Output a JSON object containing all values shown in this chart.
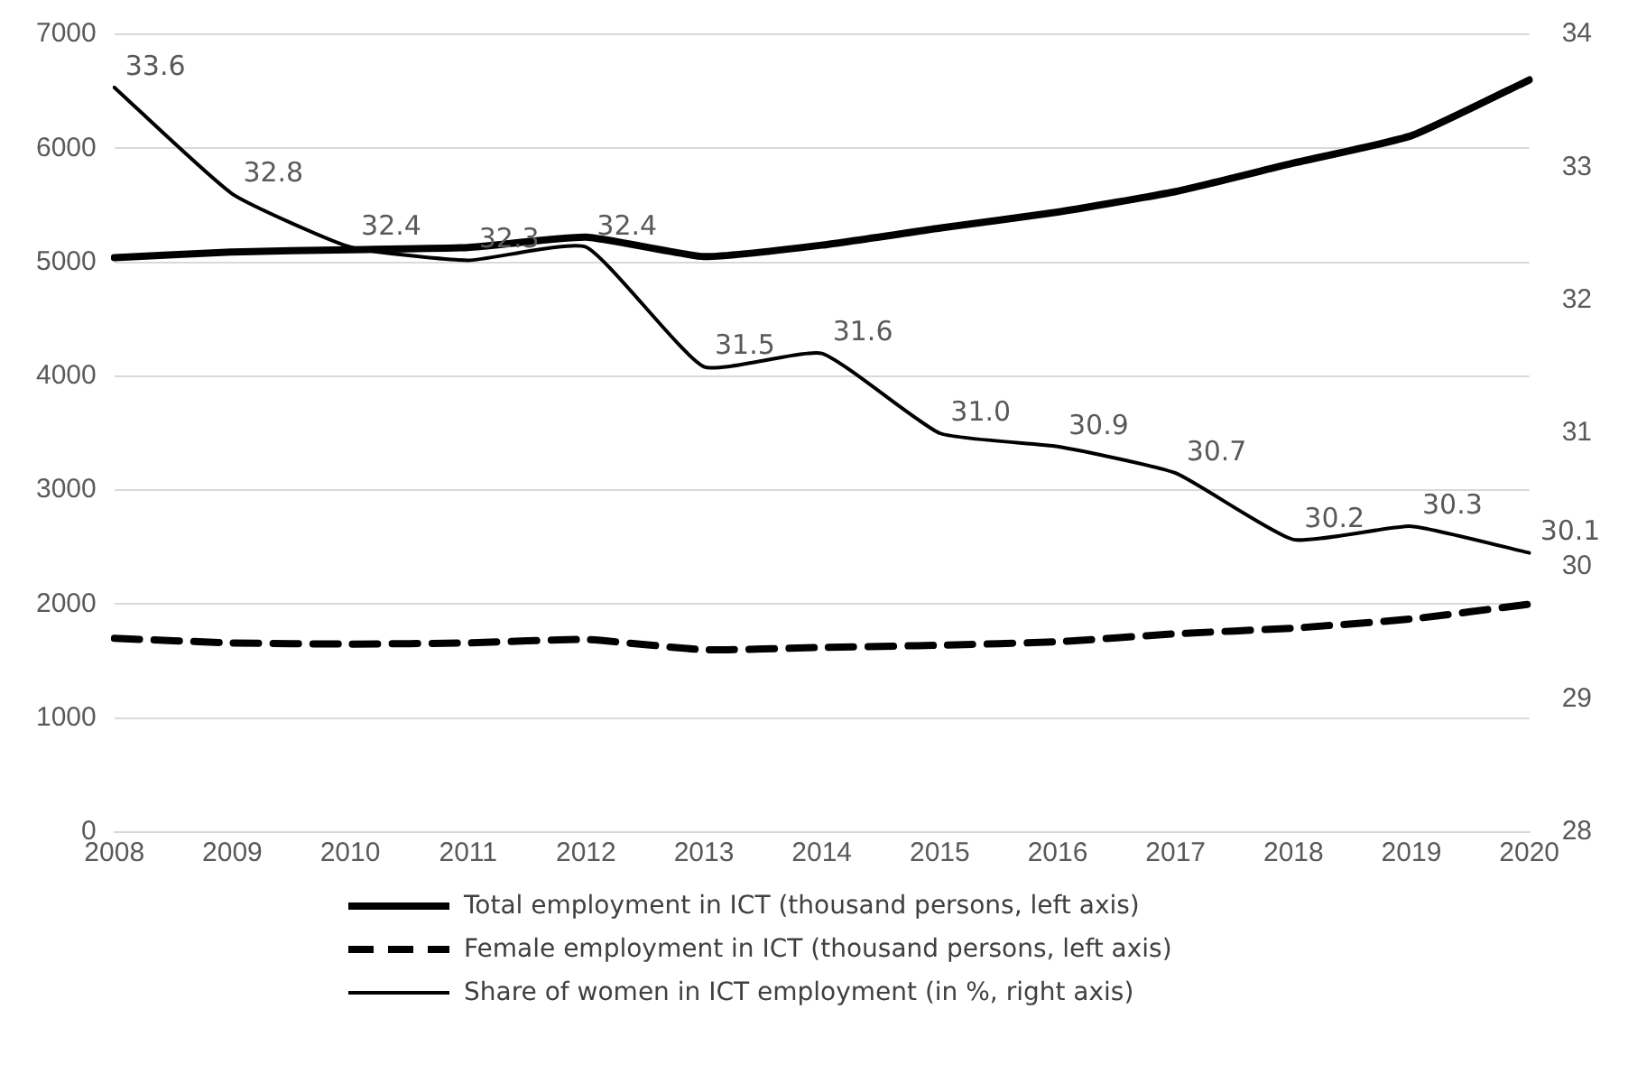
{
  "chart_data": {
    "type": "line",
    "categories": [
      "2008",
      "2009",
      "2010",
      "2011",
      "2012",
      "2013",
      "2014",
      "2015",
      "2016",
      "2017",
      "2018",
      "2019",
      "2020"
    ],
    "series": [
      {
        "name": "Total employment in ICT (thousand persons, left axis)",
        "color": "#000000",
        "line_style": "solid",
        "values": [
          5040,
          5090,
          5110,
          5130,
          5220,
          5050,
          5150,
          5300,
          5440,
          5620,
          5870,
          6110,
          6600
        ]
      },
      {
        "name": "Female employment in ICT (thousand persons, left axis)",
        "color": "#000000",
        "line_style": "dashed",
        "values": [
          1700,
          1660,
          1650,
          1660,
          1690,
          1600,
          1620,
          1640,
          1670,
          1740,
          1790,
          1870,
          2000
        ]
      },
      {
        "name": "Share of women in ICT employment (in %, right axis)",
        "color": "#000000",
        "line_style": "solid",
        "axis": "y2",
        "values": [
          33.6,
          32.8,
          32.4,
          32.3,
          32.4,
          31.5,
          31.6,
          31.0,
          30.9,
          30.7,
          30.2,
          30.3,
          30.1
        ],
        "value_labels": [
          "33.6",
          "32.8",
          "32.4",
          "32.3",
          "32.4",
          "31.5",
          "31.6",
          "31.0",
          "30.9",
          "30.7",
          "30.2",
          "30.3",
          "30.1"
        ]
      }
    ],
    "ylim": [
      0,
      7000
    ],
    "yticks": [
      0,
      1000,
      2000,
      3000,
      4000,
      5000,
      6000,
      7000
    ],
    "y2lim": [
      28,
      34
    ],
    "y2ticks": [
      28,
      29,
      30,
      31,
      32,
      33,
      34
    ],
    "grid": "y",
    "legend": "bottom",
    "marker": "none"
  }
}
